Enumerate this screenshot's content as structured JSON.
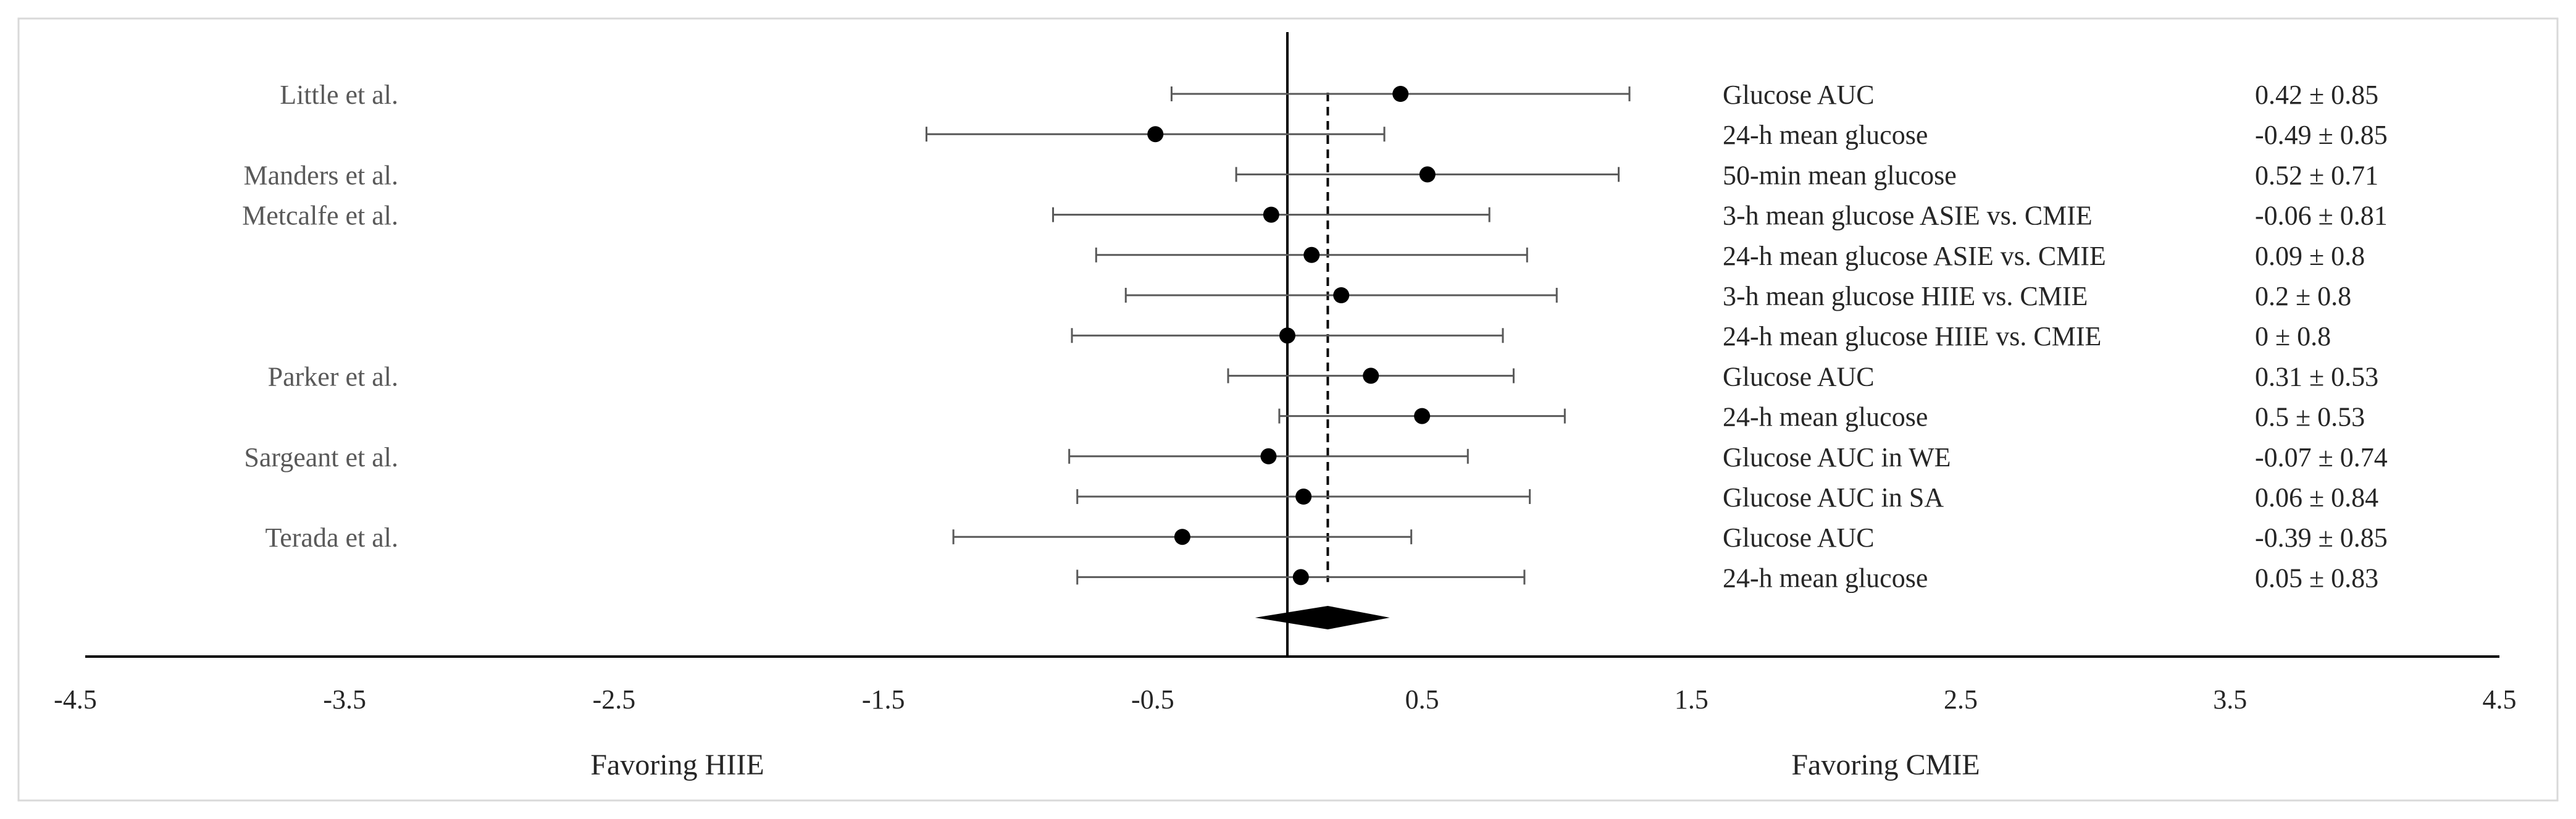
{
  "chart_data": {
    "type": "forest",
    "title": "",
    "xlabel": "",
    "ylabel": "",
    "xlim": [
      -4.5,
      4.5
    ],
    "x_ticks": [
      "-4.5",
      "-3.5",
      "-2.5",
      "-1.5",
      "-0.5",
      "0.5",
      "1.5",
      "2.5",
      "3.5",
      "4.5"
    ],
    "zero_line": 0,
    "pooled_line": 0.15,
    "favoring_left": "Favoring HIIE",
    "favoring_right": "Favoring CMIE",
    "pooled_diamond": {
      "estimate": 0.15,
      "lower": -0.12,
      "upper": 0.38
    },
    "rows": [
      {
        "study": "Little et al.",
        "outcome": "Glucose AUC",
        "estimate": 0.42,
        "sd": 0.85,
        "label": "0.42 ± 0.85"
      },
      {
        "study": "",
        "outcome": "24-h mean glucose",
        "estimate": -0.49,
        "sd": 0.85,
        "label": "-0.49 ± 0.85"
      },
      {
        "study": "Manders et al.",
        "outcome": "50-min mean glucose",
        "estimate": 0.52,
        "sd": 0.71,
        "label": "0.52 ± 0.71"
      },
      {
        "study": "Metcalfe et al.",
        "outcome": "3-h mean glucose ASIE vs. CMIE",
        "estimate": -0.06,
        "sd": 0.81,
        "label": "-0.06 ± 0.81"
      },
      {
        "study": "",
        "outcome": "24-h mean glucose ASIE vs. CMIE",
        "estimate": 0.09,
        "sd": 0.8,
        "label": "0.09 ± 0.8"
      },
      {
        "study": "",
        "outcome": "3-h mean glucose HIIE vs. CMIE",
        "estimate": 0.2,
        "sd": 0.8,
        "label": "0.2 ± 0.8"
      },
      {
        "study": "",
        "outcome": "24-h mean glucose HIIE vs. CMIE",
        "estimate": 0,
        "sd": 0.8,
        "label": "0 ± 0.8"
      },
      {
        "study": "Parker et al.",
        "outcome": "Glucose AUC",
        "estimate": 0.31,
        "sd": 0.53,
        "label": "0.31 ± 0.53"
      },
      {
        "study": "",
        "outcome": "24-h mean glucose",
        "estimate": 0.5,
        "sd": 0.53,
        "label": "0.5 ± 0.53"
      },
      {
        "study": "Sargeant et al.",
        "outcome": "Glucose AUC in WE",
        "estimate": -0.07,
        "sd": 0.74,
        "label": "-0.07 ± 0.74"
      },
      {
        "study": "",
        "outcome": "Glucose AUC in SA",
        "estimate": 0.06,
        "sd": 0.84,
        "label": "0.06 ± 0.84"
      },
      {
        "study": "Terada et al.",
        "outcome": "Glucose AUC",
        "estimate": -0.39,
        "sd": 0.85,
        "label": "-0.39 ± 0.85"
      },
      {
        "study": "",
        "outcome": "24-h mean glucose",
        "estimate": 0.05,
        "sd": 0.83,
        "label": "0.05 ± 0.83"
      }
    ]
  }
}
